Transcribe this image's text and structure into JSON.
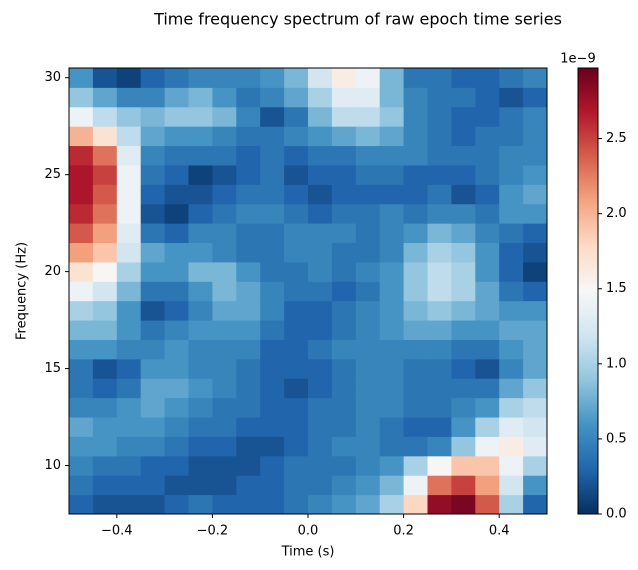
{
  "chart_data": {
    "type": "heatmap",
    "title": "Time frequency spectrum of raw epoch time series",
    "xlabel": "Time (s)",
    "ylabel": "Frequency (Hz)",
    "x": [
      -0.475,
      -0.425,
      -0.375,
      -0.325,
      -0.275,
      -0.225,
      -0.175,
      -0.125,
      -0.075,
      -0.025,
      0.025,
      0.075,
      0.125,
      0.175,
      0.225,
      0.275,
      0.325,
      0.375,
      0.425,
      0.475
    ],
    "y": [
      8,
      9,
      10,
      11,
      12,
      13,
      14,
      15,
      16,
      17,
      18,
      19,
      20,
      21,
      22,
      23,
      24,
      25,
      26,
      27,
      28,
      29,
      30
    ],
    "z": [
      [
        0.3,
        0.2,
        0.2,
        0.2,
        0.3,
        0.4,
        0.3,
        0.3,
        0.3,
        0.4,
        0.5,
        0.6,
        0.7,
        1.0,
        1.8,
        2.8,
        2.9,
        2.4,
        1.0,
        0.3
      ],
      [
        0.4,
        0.3,
        0.3,
        0.3,
        0.2,
        0.2,
        0.2,
        0.3,
        0.3,
        0.4,
        0.4,
        0.5,
        0.6,
        0.8,
        1.4,
        2.3,
        2.5,
        2.1,
        1.2,
        0.6
      ],
      [
        0.5,
        0.4,
        0.4,
        0.3,
        0.3,
        0.2,
        0.2,
        0.2,
        0.3,
        0.4,
        0.4,
        0.4,
        0.5,
        0.6,
        1.0,
        1.5,
        1.9,
        1.9,
        1.4,
        1.0
      ],
      [
        0.6,
        0.6,
        0.5,
        0.5,
        0.4,
        0.3,
        0.3,
        0.2,
        0.2,
        0.3,
        0.4,
        0.5,
        0.5,
        0.4,
        0.4,
        0.5,
        0.9,
        1.4,
        1.6,
        1.3
      ],
      [
        0.7,
        0.6,
        0.6,
        0.6,
        0.5,
        0.4,
        0.4,
        0.3,
        0.3,
        0.3,
        0.4,
        0.4,
        0.5,
        0.4,
        0.3,
        0.3,
        0.6,
        1.0,
        1.3,
        1.2
      ],
      [
        0.5,
        0.5,
        0.6,
        0.7,
        0.6,
        0.5,
        0.4,
        0.4,
        0.3,
        0.3,
        0.4,
        0.4,
        0.5,
        0.5,
        0.4,
        0.4,
        0.5,
        0.6,
        1.0,
        1.1
      ],
      [
        0.4,
        0.3,
        0.4,
        0.7,
        0.7,
        0.6,
        0.5,
        0.4,
        0.3,
        0.2,
        0.3,
        0.4,
        0.5,
        0.5,
        0.4,
        0.4,
        0.4,
        0.4,
        0.7,
        0.9
      ],
      [
        0.4,
        0.2,
        0.3,
        0.6,
        0.6,
        0.5,
        0.5,
        0.4,
        0.3,
        0.3,
        0.3,
        0.4,
        0.5,
        0.5,
        0.4,
        0.4,
        0.3,
        0.2,
        0.5,
        0.7
      ],
      [
        0.6,
        0.6,
        0.5,
        0.5,
        0.6,
        0.5,
        0.5,
        0.5,
        0.3,
        0.3,
        0.4,
        0.5,
        0.5,
        0.5,
        0.5,
        0.5,
        0.4,
        0.4,
        0.6,
        0.7
      ],
      [
        0.8,
        0.8,
        0.6,
        0.4,
        0.5,
        0.6,
        0.6,
        0.6,
        0.4,
        0.3,
        0.3,
        0.4,
        0.5,
        0.6,
        0.7,
        0.7,
        0.6,
        0.6,
        0.7,
        0.7
      ],
      [
        1.0,
        0.9,
        0.6,
        0.2,
        0.3,
        0.5,
        0.7,
        0.7,
        0.5,
        0.3,
        0.3,
        0.4,
        0.5,
        0.6,
        0.8,
        0.9,
        0.8,
        0.7,
        0.6,
        0.6
      ],
      [
        1.4,
        1.2,
        0.8,
        0.4,
        0.4,
        0.6,
        0.8,
        0.7,
        0.5,
        0.4,
        0.4,
        0.3,
        0.4,
        0.6,
        0.9,
        1.1,
        1.0,
        0.7,
        0.4,
        0.3
      ],
      [
        1.7,
        1.5,
        1.0,
        0.6,
        0.6,
        0.8,
        0.8,
        0.6,
        0.4,
        0.4,
        0.5,
        0.4,
        0.5,
        0.6,
        0.9,
        1.1,
        1.0,
        0.6,
        0.3,
        0.1
      ],
      [
        2.1,
        1.9,
        1.2,
        0.7,
        0.6,
        0.6,
        0.5,
        0.4,
        0.4,
        0.5,
        0.5,
        0.4,
        0.4,
        0.5,
        0.8,
        1.0,
        0.9,
        0.6,
        0.3,
        0.2
      ],
      [
        2.4,
        2.1,
        1.3,
        0.4,
        0.3,
        0.5,
        0.5,
        0.4,
        0.4,
        0.5,
        0.5,
        0.5,
        0.4,
        0.5,
        0.6,
        0.8,
        0.7,
        0.5,
        0.4,
        0.3
      ],
      [
        2.6,
        2.3,
        1.4,
        0.2,
        0.1,
        0.3,
        0.4,
        0.5,
        0.5,
        0.4,
        0.3,
        0.4,
        0.4,
        0.5,
        0.4,
        0.5,
        0.5,
        0.4,
        0.6,
        0.6
      ],
      [
        2.7,
        2.4,
        1.4,
        0.3,
        0.2,
        0.2,
        0.3,
        0.4,
        0.4,
        0.3,
        0.2,
        0.3,
        0.3,
        0.3,
        0.3,
        0.4,
        0.2,
        0.3,
        0.6,
        0.7
      ],
      [
        2.7,
        2.5,
        1.4,
        0.4,
        0.3,
        0.1,
        0.2,
        0.3,
        0.4,
        0.2,
        0.3,
        0.3,
        0.4,
        0.4,
        0.3,
        0.3,
        0.3,
        0.4,
        0.5,
        0.6
      ],
      [
        2.6,
        2.3,
        1.3,
        0.5,
        0.4,
        0.4,
        0.4,
        0.3,
        0.4,
        0.3,
        0.4,
        0.4,
        0.5,
        0.5,
        0.5,
        0.4,
        0.4,
        0.4,
        0.5,
        0.5
      ],
      [
        2.0,
        1.7,
        1.1,
        0.7,
        0.6,
        0.6,
        0.5,
        0.4,
        0.4,
        0.5,
        0.6,
        0.7,
        0.8,
        0.7,
        0.5,
        0.4,
        0.3,
        0.4,
        0.4,
        0.5
      ],
      [
        1.4,
        1.1,
        0.9,
        0.8,
        0.9,
        0.9,
        0.8,
        0.5,
        0.2,
        0.4,
        0.8,
        1.1,
        1.1,
        0.9,
        0.5,
        0.4,
        0.3,
        0.3,
        0.4,
        0.5
      ],
      [
        0.9,
        0.7,
        0.5,
        0.5,
        0.7,
        0.8,
        0.6,
        0.4,
        0.5,
        0.7,
        1.0,
        1.3,
        1.3,
        0.8,
        0.5,
        0.4,
        0.4,
        0.3,
        0.2,
        0.3
      ],
      [
        0.6,
        0.2,
        0.1,
        0.3,
        0.4,
        0.5,
        0.5,
        0.5,
        0.6,
        0.8,
        1.2,
        1.6,
        1.4,
        0.8,
        0.4,
        0.4,
        0.3,
        0.3,
        0.4,
        0.5
      ]
    ],
    "xlim": [
      -0.5,
      0.5
    ],
    "xticks": [
      {
        "value": -0.4,
        "label": "−0.4"
      },
      {
        "value": -0.2,
        "label": "−0.2"
      },
      {
        "value": 0,
        "label": "0.0"
      },
      {
        "value": 0.2,
        "label": "0.2"
      },
      {
        "value": 0.4,
        "label": "0.4"
      }
    ],
    "ylim": [
      7.5,
      30.5
    ],
    "yticks": [
      10,
      15,
      20,
      25,
      30
    ],
    "colormap": "RdBu_r",
    "clim": [
      0,
      2.97
    ],
    "cticks": [
      {
        "value": 0,
        "label": "0.0"
      },
      {
        "value": 0.5,
        "label": "0.5"
      },
      {
        "value": 1,
        "label": "1.0"
      },
      {
        "value": 1.5,
        "label": "1.5"
      },
      {
        "value": 2,
        "label": "2.0"
      },
      {
        "value": 2.5,
        "label": "2.5"
      }
    ],
    "colorbar_offset": "1e−9"
  }
}
